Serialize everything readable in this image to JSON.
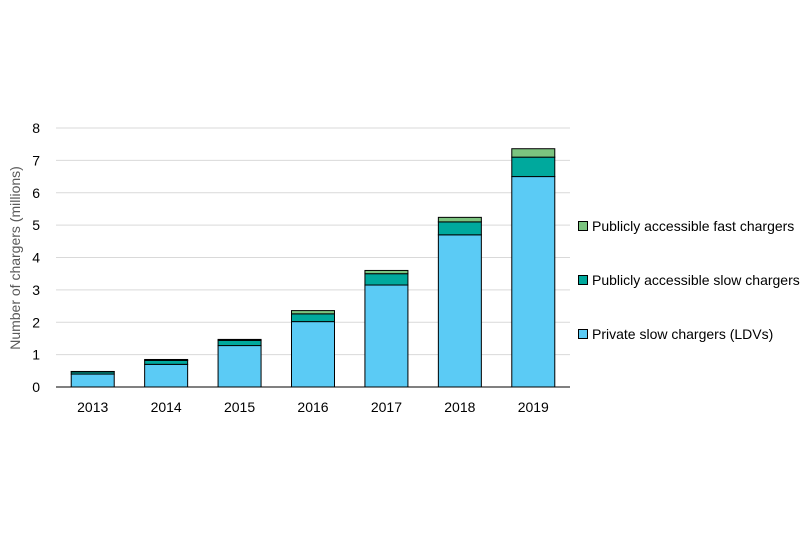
{
  "chart_data": {
    "type": "bar",
    "stacked": true,
    "title": "",
    "xlabel": "",
    "ylabel": "Number of chargers (millions)",
    "ylim": [
      0,
      8
    ],
    "yticks": [
      0,
      1,
      2,
      3,
      4,
      5,
      6,
      7,
      8
    ],
    "grid": true,
    "legend_position": "right",
    "categories": [
      "2013",
      "2014",
      "2015",
      "2016",
      "2017",
      "2018",
      "2019"
    ],
    "series": [
      {
        "name": "Private slow chargers (LDVs)",
        "color": "#5BCBF5",
        "values": [
          0.4,
          0.7,
          1.28,
          2.02,
          3.15,
          4.7,
          6.5
        ]
      },
      {
        "name": "Publicly accessible slow chargers",
        "color": "#00A99D",
        "values": [
          0.07,
          0.12,
          0.16,
          0.24,
          0.35,
          0.4,
          0.6
        ]
      },
      {
        "name": "Publicly accessible fast chargers",
        "color": "#7BC47F",
        "values": [
          0.01,
          0.03,
          0.03,
          0.1,
          0.1,
          0.14,
          0.26
        ]
      }
    ]
  }
}
